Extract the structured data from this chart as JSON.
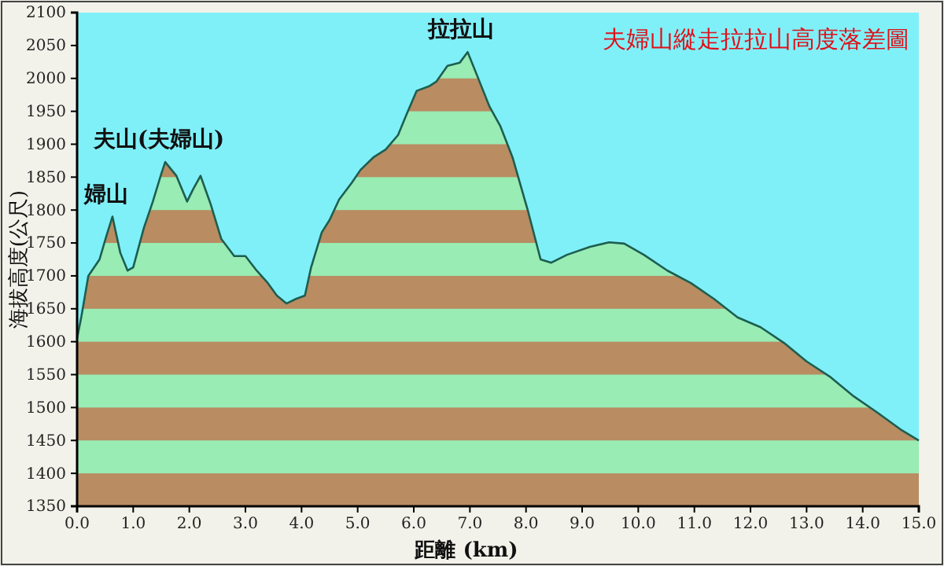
{
  "chart_data": {
    "type": "area",
    "title": "夫婦山縱走拉拉山高度落差圖",
    "xlabel": "距離 (km)",
    "ylabel": "海拔高度(公尺)",
    "x": [
      0,
      0.08,
      0.2,
      0.4,
      0.52,
      0.63,
      0.77,
      0.9,
      1.0,
      1.19,
      1.35,
      1.5,
      1.57,
      1.77,
      1.96,
      2.07,
      2.2,
      2.38,
      2.57,
      2.8,
      3.0,
      3.2,
      3.4,
      3.56,
      3.73,
      3.9,
      4.06,
      4.17,
      4.36,
      4.5,
      4.67,
      4.9,
      5.05,
      5.28,
      5.5,
      5.72,
      5.88,
      6.05,
      6.27,
      6.4,
      6.6,
      6.82,
      6.96,
      7.13,
      7.35,
      7.54,
      7.76,
      8.04,
      8.26,
      8.45,
      8.73,
      9.14,
      9.48,
      9.75,
      10.1,
      10.52,
      10.94,
      11.35,
      11.77,
      12.18,
      12.6,
      13.0,
      13.43,
      13.84,
      14.25,
      14.67,
      15.0
    ],
    "series": [
      {
        "color": "#98ecb4",
        "values": [
          1605,
          1640,
          1700,
          1725,
          1760,
          1790,
          1735,
          1708,
          1713,
          1773,
          1813,
          1855,
          1873,
          1852,
          1813,
          1832,
          1852,
          1809,
          1756,
          1730,
          1730,
          1708,
          1689,
          1670,
          1658,
          1665,
          1670,
          1713,
          1766,
          1785,
          1816,
          1842,
          1861,
          1880,
          1892,
          1914,
          1947,
          1981,
          1988,
          1995,
          2019,
          2024,
          2040,
          2004,
          1957,
          1928,
          1880,
          1797,
          1725,
          1720,
          1732,
          1744,
          1751,
          1749,
          1732,
          1708,
          1689,
          1665,
          1637,
          1622,
          1598,
          1570,
          1546,
          1517,
          1493,
          1467,
          1450
        ]
      }
    ],
    "xlim": [
      0,
      15
    ],
    "ylim": [
      1350,
      2100
    ],
    "xticks": [
      {
        "value": 0,
        "label": "0.0"
      },
      {
        "value": 1,
        "label": "1.0"
      },
      {
        "value": 2,
        "label": "2.0"
      },
      {
        "value": 3,
        "label": "3.0"
      },
      {
        "value": 4,
        "label": "4.0"
      },
      {
        "value": 5,
        "label": "5.0"
      },
      {
        "value": 6,
        "label": "6.0"
      },
      {
        "value": 7,
        "label": "7.0"
      },
      {
        "value": 8,
        "label": "8.0"
      },
      {
        "value": 9,
        "label": "9.0"
      },
      {
        "value": 10,
        "label": "10.0"
      },
      {
        "value": 11,
        "label": "11.0"
      },
      {
        "value": 12,
        "label": "12.0"
      },
      {
        "value": 13,
        "label": "13.0"
      },
      {
        "value": 14,
        "label": "14.0"
      },
      {
        "value": 15,
        "label": "15.0"
      }
    ],
    "yticks": [
      1350,
      1400,
      1450,
      1500,
      1550,
      1600,
      1650,
      1700,
      1750,
      1800,
      1850,
      1900,
      1950,
      2000,
      2050,
      2100
    ],
    "annotations": [
      {
        "text": "婦山",
        "x": 0.63,
        "y": 1790
      },
      {
        "text": "夫山(夫婦山)",
        "x": 1.57,
        "y": 1873
      },
      {
        "text": "拉拉山",
        "x": 6.96,
        "y": 2040
      }
    ]
  }
}
